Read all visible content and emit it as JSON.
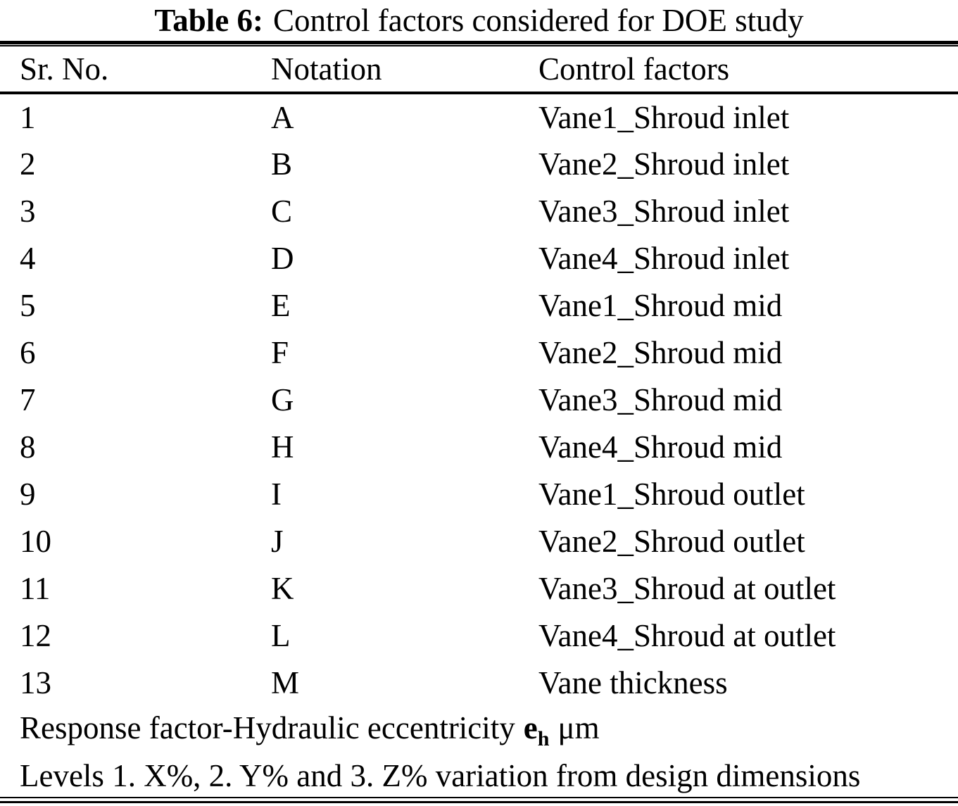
{
  "style": {
    "text_color": "#000000",
    "background_color": "#ffffff"
  },
  "caption": {
    "label": "Table 6:",
    "text": "Control factors considered for DOE study"
  },
  "columns": [
    "Sr. No.",
    "Notation",
    "Control factors"
  ],
  "rows": [
    {
      "sr": "1",
      "notation": "A",
      "factor": "Vane1_Shroud inlet"
    },
    {
      "sr": "2",
      "notation": "B",
      "factor": "Vane2_Shroud inlet"
    },
    {
      "sr": "3",
      "notation": "C",
      "factor": "Vane3_Shroud inlet"
    },
    {
      "sr": "4",
      "notation": "D",
      "factor": "Vane4_Shroud inlet"
    },
    {
      "sr": "5",
      "notation": "E",
      "factor": "Vane1_Shroud mid"
    },
    {
      "sr": "6",
      "notation": "F",
      "factor": "Vane2_Shroud mid"
    },
    {
      "sr": "7",
      "notation": "G",
      "factor": "Vane3_Shroud mid"
    },
    {
      "sr": "8",
      "notation": "H",
      "factor": "Vane4_Shroud mid"
    },
    {
      "sr": "9",
      "notation": "I",
      "factor": "Vane1_Shroud outlet"
    },
    {
      "sr": "10",
      "notation": "J",
      "factor": "Vane2_Shroud outlet"
    },
    {
      "sr": "11",
      "notation": "K",
      "factor": "Vane3_Shroud at outlet"
    },
    {
      "sr": "12",
      "notation": "L",
      "factor": "Vane4_Shroud at outlet"
    },
    {
      "sr": "13",
      "notation": "M",
      "factor": "Vane thickness"
    }
  ],
  "footer": {
    "response_prefix": "Response factor-Hydraulic eccentricity",
    "response_symbol": "e",
    "response_subscript": "h",
    "response_unit": "μm",
    "levels": "Levels 1. X%, 2. Y% and 3. Z% variation from design dimensions"
  }
}
